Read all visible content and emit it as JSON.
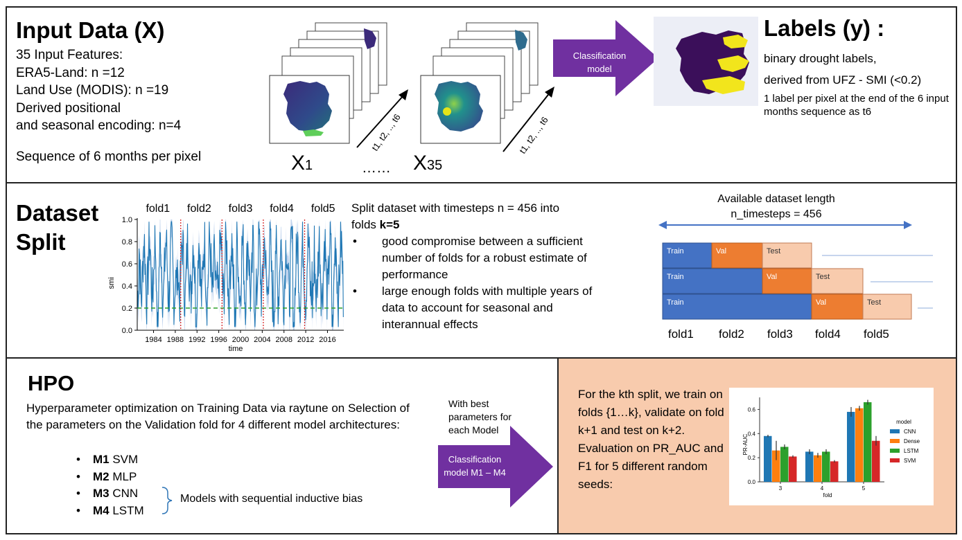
{
  "input_panel": {
    "title": "Input Data (X)",
    "lines": [
      "35 Input Features:",
      "ERA5-Land: n =12",
      "Land Use (MODIS): n =19",
      "Derived positional",
      "and seasonal encoding: n=4"
    ],
    "sequence_text": "Sequence of 6 months per pixel",
    "stack1_label": "X",
    "stack1_sub": "1",
    "ellipsis": "……",
    "stack2_label": "X",
    "stack2_sub": "35",
    "time_arrow_label": "t1, t2, .., t6",
    "classifier_label": "Classification model",
    "labels_title": "Labels (y) :",
    "labels_lines": [
      "binary drought labels,",
      "derived from UFZ - SMI (<0.2)"
    ],
    "labels_note": "1 label per pixel at the end of the 6 input months sequence as t6"
  },
  "split_panel": {
    "title_line1": "Dataset",
    "title_line2": "Split",
    "plot": {
      "ylabel": "smi",
      "xlabel": "time",
      "y_ticks": [
        "0.0",
        "0.2",
        "0.4",
        "0.6",
        "0.8",
        "1.0"
      ],
      "x_ticks": [
        "1984",
        "1988",
        "1992",
        "1996",
        "2000",
        "2004",
        "2008",
        "2012",
        "2016"
      ],
      "fold_labels": [
        "fold1",
        "fold2",
        "fold3",
        "fold4",
        "fold5"
      ],
      "threshold": 0.2,
      "colors": {
        "line": "#1f77b4",
        "band": "#aec7e8",
        "threshold": "#2ca02c",
        "boundary": "#d62728"
      }
    },
    "desc_intro": "Split dataset with timesteps n = 456 into",
    "desc_folds_prefix": "folds ",
    "desc_folds_k": "k=5",
    "desc_bullets": [
      "good compromise between a sufficient number of folds for a robust estimate of performance",
      "large enough folds with multiple years of data to account for seasonal and interannual effects"
    ],
    "schema": {
      "title_line1": "Available dataset length",
      "title_line2": "n_timesteps = 456",
      "rows": [
        {
          "train": "Train",
          "val": "Val",
          "test": "Test"
        },
        {
          "train": "Train",
          "val": "Val",
          "test": "Test"
        },
        {
          "train": "Train",
          "val": "Val",
          "test": "Test"
        }
      ],
      "fold_labels": [
        "fold1",
        "fold2",
        "fold3",
        "fold4",
        "fold5"
      ],
      "colors": {
        "train": "#4472c4",
        "val": "#ed7d31",
        "test": "#f8cbad",
        "arrow": "#4472c4"
      }
    }
  },
  "hpo_panel": {
    "title": "HPO",
    "desc": "Hyperparameter optimization on Training Data via raytune on Selection of the parameters on the Validation fold for 4 different model architectures:",
    "models": [
      {
        "bold": "M1",
        "name": " SVM"
      },
      {
        "bold": "M2",
        "name": " MLP"
      },
      {
        "bold": "M3",
        "name": " CNN"
      },
      {
        "bold": "M4",
        "name": " LSTM"
      }
    ],
    "bracket_note": "Models with sequential inductive bias",
    "arrow_top_text": "With best parameters for each Model",
    "arrow_label": "Classification model M1 – M4"
  },
  "eval_panel": {
    "background": "#f8cbad",
    "text": "For the kth split, we train on folds {1…k}, validate on fold k+1 and test on k+2. Evaluation on PR_AUC and F1 for 5 different random seeds:"
  },
  "chart_data": {
    "type": "bar",
    "xlabel": "fold",
    "ylabel": "PR-AUC",
    "categories": [
      "3",
      "4",
      "5"
    ],
    "ylim": [
      0,
      0.7
    ],
    "y_ticks": [
      "0.0",
      "0.2",
      "0.4",
      "0.6"
    ],
    "legend_title": "model",
    "legend_position": "right",
    "series": [
      {
        "name": "CNN",
        "color": "#1f77b4",
        "values": [
          0.38,
          0.25,
          0.58
        ],
        "err": [
          0.01,
          0.02,
          0.04
        ]
      },
      {
        "name": "Dense",
        "color": "#ff7f0e",
        "values": [
          0.26,
          0.22,
          0.61
        ],
        "err": [
          0.08,
          0.02,
          0.02
        ]
      },
      {
        "name": "LSTM",
        "color": "#2ca02c",
        "values": [
          0.29,
          0.25,
          0.66
        ],
        "err": [
          0.02,
          0.02,
          0.02
        ]
      },
      {
        "name": "SVM",
        "color": "#d62728",
        "values": [
          0.21,
          0.17,
          0.34
        ],
        "err": [
          0.01,
          0.01,
          0.04
        ]
      }
    ]
  }
}
